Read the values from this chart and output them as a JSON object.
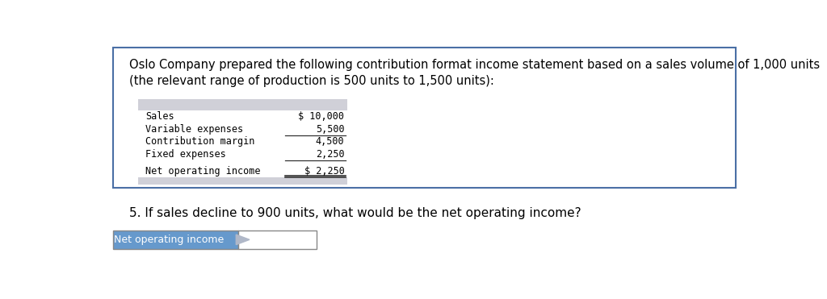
{
  "paragraph_line1": "Oslo Company prepared the following contribution format income statement based on a sales volume of 1,000 units",
  "paragraph_line2": "(the relevant range of production is 500 units to 1,500 units):",
  "table_rows": [
    {
      "label": "Sales",
      "value": "$ 10,000",
      "bottom_border": false,
      "extra_gap_after": false
    },
    {
      "label": "Variable expenses",
      "value": "5,500",
      "bottom_border": true,
      "extra_gap_after": false
    },
    {
      "label": "Contribution margin",
      "value": "4,500",
      "bottom_border": false,
      "extra_gap_after": false
    },
    {
      "label": "Fixed expenses",
      "value": "2,250",
      "bottom_border": true,
      "extra_gap_after": true
    },
    {
      "label": "Net operating income",
      "value": "$ 2,250",
      "bottom_border": true,
      "extra_gap_after": false
    }
  ],
  "question": "5. If sales decline to 900 units, what would be the net operating income?",
  "answer_label": "Net operating income",
  "bg_color": "#ffffff",
  "box_border_color": "#4a6fa5",
  "table_header_bg": "#d0d0d8",
  "table_footer_bg": "#d0d0d8",
  "text_color": "#000000",
  "answer_label_bg": "#6699cc",
  "answer_label_text_color": "#ffffff"
}
